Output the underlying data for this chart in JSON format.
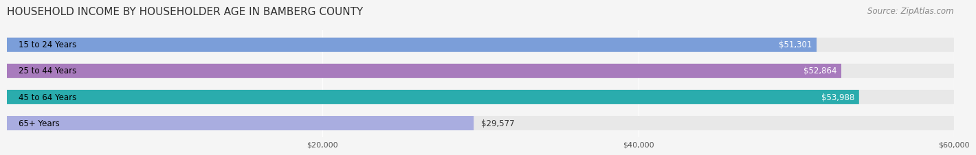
{
  "title": "HOUSEHOLD INCOME BY HOUSEHOLDER AGE IN BAMBERG COUNTY",
  "source": "Source: ZipAtlas.com",
  "categories": [
    "15 to 24 Years",
    "25 to 44 Years",
    "45 to 64 Years",
    "65+ Years"
  ],
  "values": [
    51301,
    52864,
    53988,
    29577
  ],
  "bar_colors": [
    "#7B9ED9",
    "#A87BBD",
    "#2AACAD",
    "#A9ADE0"
  ],
  "label_colors": [
    "white",
    "white",
    "white",
    "black"
  ],
  "value_labels": [
    "$51,301",
    "$52,864",
    "$53,988",
    "$29,577"
  ],
  "xlim": [
    0,
    60000
  ],
  "xticks": [
    20000,
    40000,
    60000
  ],
  "xticklabels": [
    "$20,000",
    "$40,000",
    "$60,000"
  ],
  "bar_height": 0.55,
  "background_color": "#f5f5f5",
  "bar_bg_color": "#e8e8e8",
  "title_fontsize": 11,
  "source_fontsize": 8.5
}
